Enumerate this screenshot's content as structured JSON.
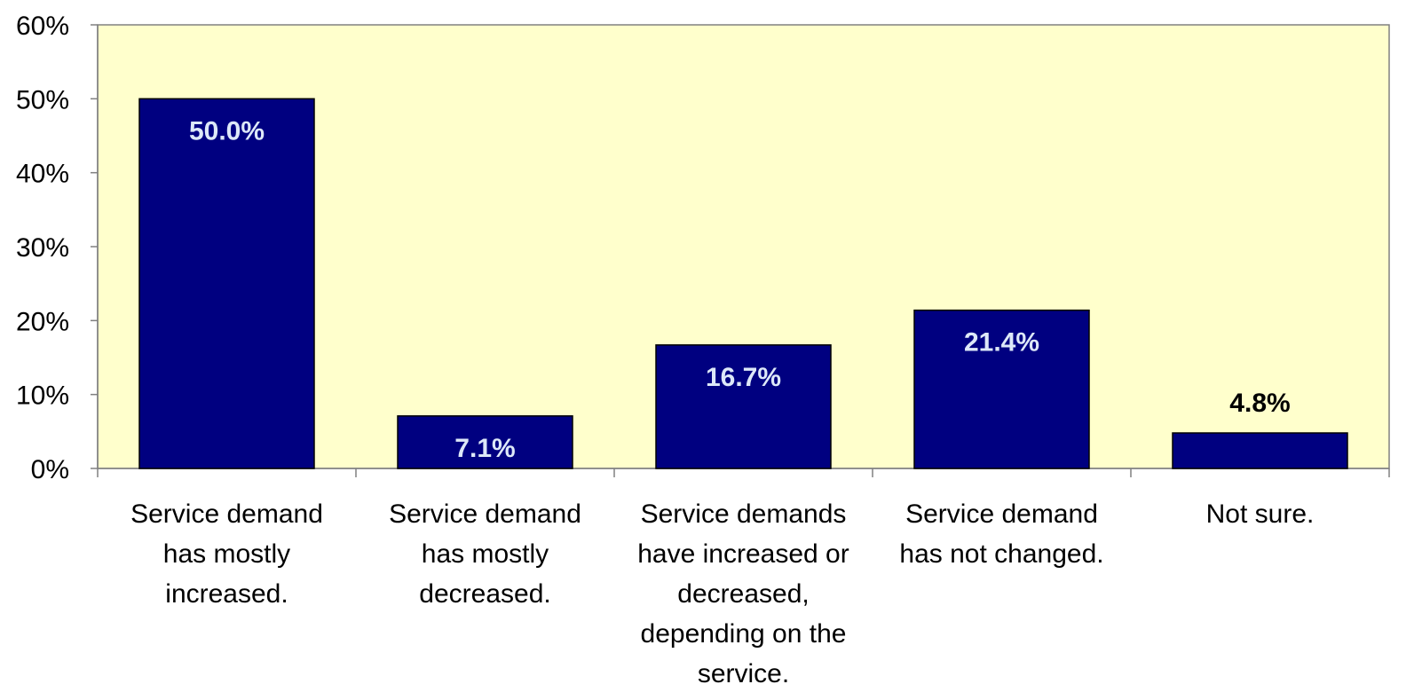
{
  "chart_data": {
    "type": "bar",
    "title": "",
    "xlabel": "",
    "ylabel": "",
    "categories": [
      [
        "Service demand",
        "has mostly",
        "increased."
      ],
      [
        "Service demand",
        "has mostly",
        "decreased."
      ],
      [
        "Service demands",
        "have increased or",
        "decreased,",
        "depending on the",
        "service."
      ],
      [
        "Service demand",
        "has not changed."
      ],
      [
        "Not sure."
      ]
    ],
    "values": [
      50.0,
      7.1,
      16.7,
      21.4,
      4.8
    ],
    "data_labels": [
      "50.0%",
      "7.1%",
      "16.7%",
      "21.4%",
      "4.8%"
    ],
    "ylim": [
      0,
      60
    ],
    "yticks": [
      0,
      10,
      20,
      30,
      40,
      50,
      60
    ],
    "ytick_labels": [
      "0%",
      "10%",
      "20%",
      "30%",
      "40%",
      "50%",
      "60%"
    ],
    "grid": false,
    "legend": "none",
    "colors": {
      "plot_background": "#FFFFCC",
      "bar_fill": "#000080",
      "bar_stroke": "#000000",
      "label_inside": "#DDE8F8",
      "label_outside": "#000000",
      "axis": "#808080"
    }
  }
}
